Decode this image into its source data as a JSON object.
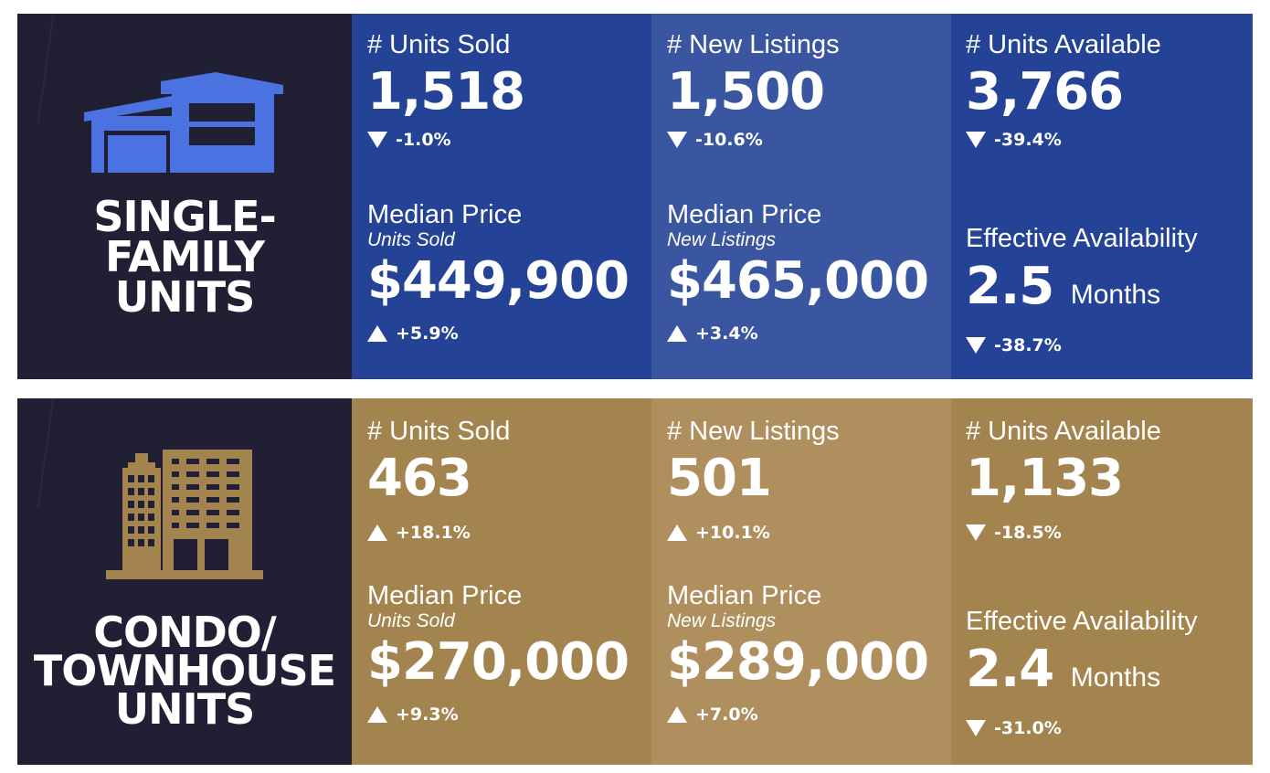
{
  "single_family": {
    "title_line1": "SINGLE-",
    "title_line2": "FAMILY",
    "title_line3": "UNITS",
    "icon": "house-icon",
    "icon_color": "#4a72e0",
    "units_sold": {
      "label": "# Units Sold",
      "value": "1,518",
      "change": "-1.0%",
      "direction": "down"
    },
    "new_listings": {
      "label": "# New Listings",
      "value": "1,500",
      "change": "-10.6%",
      "direction": "down"
    },
    "units_available": {
      "label": "# Units Available",
      "value": "3,766",
      "change": "-39.4%",
      "direction": "down"
    },
    "median_price_sold": {
      "label": "Median Price",
      "sublabel": "Units Sold",
      "value": "$449,900",
      "change": "+5.9%",
      "direction": "up"
    },
    "median_price_listings": {
      "label": "Median Price",
      "sublabel": "New Listings",
      "value": "$465,000",
      "change": "+3.4%",
      "direction": "up"
    },
    "effective_availability": {
      "label": "Effective Availability",
      "value": "2.5",
      "unit": "Months",
      "change": "-38.7%",
      "direction": "down"
    }
  },
  "condo_townhouse": {
    "title_line1": "CONDO/",
    "title_line2": "TOWNHOUSE",
    "title_line3": "UNITS",
    "icon": "building-icon",
    "icon_color": "#a4844e",
    "units_sold": {
      "label": "# Units Sold",
      "value": "463",
      "change": "+18.1%",
      "direction": "up"
    },
    "new_listings": {
      "label": "# New Listings",
      "value": "501",
      "change": "+10.1%",
      "direction": "up"
    },
    "units_available": {
      "label": "# Units Available",
      "value": "1,133",
      "change": "-18.5%",
      "direction": "down"
    },
    "median_price_sold": {
      "label": "Median Price",
      "sublabel": "Units Sold",
      "value": "$270,000",
      "change": "+9.3%",
      "direction": "up"
    },
    "median_price_listings": {
      "label": "Median Price",
      "sublabel": "New Listings",
      "value": "$289,000",
      "change": "+7.0%",
      "direction": "up"
    },
    "effective_availability": {
      "label": "Effective Availability",
      "value": "2.4",
      "unit": "Months",
      "change": "-31.0%",
      "direction": "down"
    }
  }
}
